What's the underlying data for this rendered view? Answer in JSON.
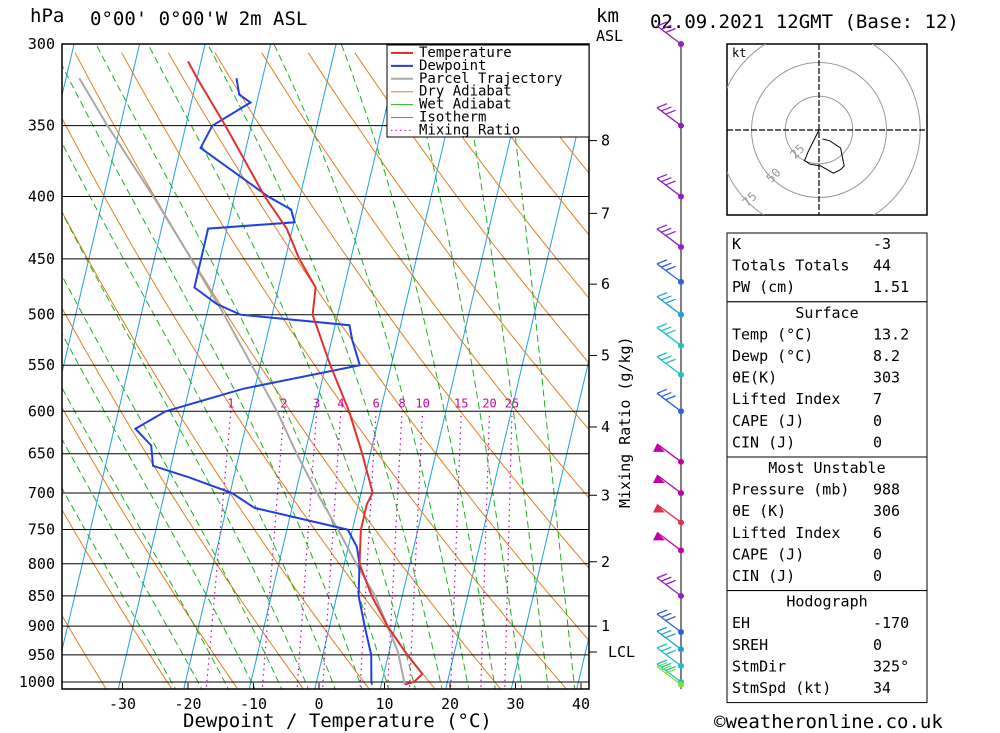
{
  "header": {
    "location": "0°00' 0°00'W 2m ASL",
    "datetime": "02.09.2021 12GMT (Base: 12)",
    "left_unit": "hPa",
    "km_label": "km",
    "asl_label": "ASL",
    "kt_label": "kt"
  },
  "footer": {
    "xlabel": "Dewpoint / Temperature (°C)",
    "ylabel_mixing": "Mixing Ratio (g/kg)",
    "credit": "©weatheronline.co.uk"
  },
  "chart_data": {
    "type": "line",
    "pressure_levels": [
      300,
      350,
      400,
      450,
      500,
      550,
      600,
      650,
      700,
      750,
      800,
      850,
      900,
      950,
      1000
    ],
    "x_ticks": [
      -30,
      -20,
      -10,
      0,
      10,
      20,
      30,
      40
    ],
    "ylim_hpa": [
      1000,
      300
    ],
    "xlim_c": [
      -40,
      40
    ],
    "km_ticks": [
      {
        "label": "8",
        "p": 360
      },
      {
        "label": "7",
        "p": 413
      },
      {
        "label": "6",
        "p": 472
      },
      {
        "label": "5",
        "p": 540
      },
      {
        "label": "4",
        "p": 618
      },
      {
        "label": "3",
        "p": 703
      },
      {
        "label": "2",
        "p": 797
      },
      {
        "label": "1",
        "p": 900
      },
      {
        "label": "LCL",
        "p": 945
      }
    ],
    "mixing_ratio_labels": [
      "1",
      "2",
      "3",
      "4",
      "6",
      "8",
      "10",
      "15",
      "20",
      "25"
    ],
    "mixing_ratio_values": [
      1,
      2,
      3,
      4,
      6,
      8,
      10,
      15,
      20,
      25
    ],
    "legend": [
      "Temperature",
      "Dewpoint",
      "Parcel Trajectory",
      "Dry Adiabat",
      "Wet Adiabat",
      "Isotherm",
      "Mixing Ratio"
    ],
    "series": [
      {
        "name": "Temperature",
        "color": "#e03030",
        "points": [
          [
            1005,
            13.2
          ],
          [
            1000,
            14.5
          ],
          [
            985,
            15.5
          ],
          [
            950,
            12.5
          ],
          [
            900,
            8.5
          ],
          [
            850,
            5
          ],
          [
            800,
            2
          ],
          [
            750,
            1
          ],
          [
            715,
            1
          ],
          [
            700,
            1.5
          ],
          [
            650,
            -1.5
          ],
          [
            600,
            -5
          ],
          [
            550,
            -9.5
          ],
          [
            500,
            -14
          ],
          [
            475,
            -14.5
          ],
          [
            450,
            -18
          ],
          [
            425,
            -21
          ],
          [
            400,
            -25.5
          ],
          [
            350,
            -34
          ],
          [
            320,
            -40
          ],
          [
            310,
            -42
          ]
        ]
      },
      {
        "name": "Dewpoint",
        "color": "#2040e0",
        "points": [
          [
            1005,
            8.2
          ],
          [
            1000,
            8
          ],
          [
            950,
            7
          ],
          [
            900,
            5
          ],
          [
            850,
            3
          ],
          [
            800,
            2
          ],
          [
            775,
            1
          ],
          [
            750,
            -1
          ],
          [
            720,
            -16
          ],
          [
            700,
            -20
          ],
          [
            680,
            -27
          ],
          [
            665,
            -33
          ],
          [
            640,
            -34
          ],
          [
            620,
            -37
          ],
          [
            600,
            -33
          ],
          [
            575,
            -22
          ],
          [
            550,
            -5
          ],
          [
            525,
            -7
          ],
          [
            510,
            -8
          ],
          [
            500,
            -25
          ],
          [
            490,
            -29
          ],
          [
            475,
            -33
          ],
          [
            450,
            -33
          ],
          [
            425,
            -33
          ],
          [
            420,
            -20
          ],
          [
            410,
            -21
          ],
          [
            400,
            -25
          ],
          [
            365,
            -37
          ],
          [
            350,
            -36
          ],
          [
            335,
            -31
          ],
          [
            330,
            -33
          ],
          [
            320,
            -34
          ]
        ]
      },
      {
        "name": "Parcel Trajectory",
        "color": "#a8a8a8",
        "points": [
          [
            1005,
            13.2
          ],
          [
            945,
            11
          ],
          [
            900,
            8.5
          ],
          [
            850,
            5.5
          ],
          [
            800,
            1.5
          ],
          [
            750,
            -2.5
          ],
          [
            700,
            -7
          ],
          [
            650,
            -11.5
          ],
          [
            600,
            -16
          ],
          [
            550,
            -21.5
          ],
          [
            500,
            -27.5
          ],
          [
            450,
            -34.5
          ],
          [
            400,
            -42.5
          ],
          [
            350,
            -52
          ],
          [
            320,
            -58
          ]
        ]
      }
    ],
    "hodograph": {
      "ring_labels": [
        "25",
        "50",
        "75"
      ],
      "points": [
        [
          0,
          0
        ],
        [
          -4,
          -8
        ],
        [
          -6,
          -12
        ],
        [
          -8,
          -17
        ],
        [
          -5,
          -19
        ],
        [
          1,
          -20
        ],
        [
          8,
          -24
        ],
        [
          12,
          -22
        ],
        [
          14,
          -20
        ],
        [
          12,
          -10
        ],
        [
          6,
          -6
        ],
        [
          2,
          -5
        ]
      ]
    },
    "wind_barbs": [
      {
        "p": 300,
        "color": "#9020c0"
      },
      {
        "p": 350,
        "color": "#9020c0"
      },
      {
        "p": 400,
        "color": "#9020c0"
      },
      {
        "p": 440,
        "color": "#9020c0"
      },
      {
        "p": 470,
        "color": "#3060e0"
      },
      {
        "p": 500,
        "color": "#20a0d0"
      },
      {
        "p": 530,
        "color": "#20c0c0"
      },
      {
        "p": 560,
        "color": "#20c0c0"
      },
      {
        "p": 600,
        "color": "#3060e0"
      },
      {
        "p": 660,
        "color": "#c000a0"
      },
      {
        "p": 700,
        "color": "#c000a0"
      },
      {
        "p": 740,
        "color": "#e03050"
      },
      {
        "p": 780,
        "color": "#c000a0"
      },
      {
        "p": 850,
        "color": "#9020c0"
      },
      {
        "p": 910,
        "color": "#3060e0"
      },
      {
        "p": 940,
        "color": "#20a0d0"
      },
      {
        "p": 970,
        "color": "#20c0c0"
      },
      {
        "p": 1000,
        "color": "#20c0c0"
      },
      {
        "p": 1005,
        "color": "#80e040"
      }
    ]
  },
  "indices": {
    "block1": [
      {
        "label": "K",
        "value": "-3"
      },
      {
        "label": "Totals Totals",
        "value": "44"
      },
      {
        "label": "PW (cm)",
        "value": "1.51"
      }
    ],
    "surface_title": "Surface",
    "surface": [
      {
        "label": "Temp (°C)",
        "value": "13.2"
      },
      {
        "label": "Dewp (°C)",
        "value": "8.2"
      },
      {
        "label": "θE(K)",
        "value": "303"
      },
      {
        "label": "Lifted Index",
        "value": "7"
      },
      {
        "label": "CAPE (J)",
        "value": "0"
      },
      {
        "label": "CIN (J)",
        "value": "0"
      }
    ],
    "mu_title": "Most Unstable",
    "mu": [
      {
        "label": "Pressure (mb)",
        "value": "988"
      },
      {
        "label": "θE (K)",
        "value": "306"
      },
      {
        "label": "Lifted Index",
        "value": "6"
      },
      {
        "label": "CAPE (J)",
        "value": "0"
      },
      {
        "label": "CIN (J)",
        "value": "0"
      }
    ],
    "hodo_title": "Hodograph",
    "hodo": [
      {
        "label": "EH",
        "value": "-170"
      },
      {
        "label": "SREH",
        "value": "0"
      },
      {
        "label": "StmDir",
        "value": "325°"
      },
      {
        "label": "StmSpd (kt)",
        "value": "34"
      }
    ]
  },
  "colors": {
    "temperature": "#e03030",
    "dewpoint": "#2040e0",
    "parcel": "#a8a8a8",
    "dry_adiabat": "#e08020",
    "wet_adiabat": "#20b020",
    "isotherm": "#20a0e0",
    "mixing": "#cc00aa"
  }
}
